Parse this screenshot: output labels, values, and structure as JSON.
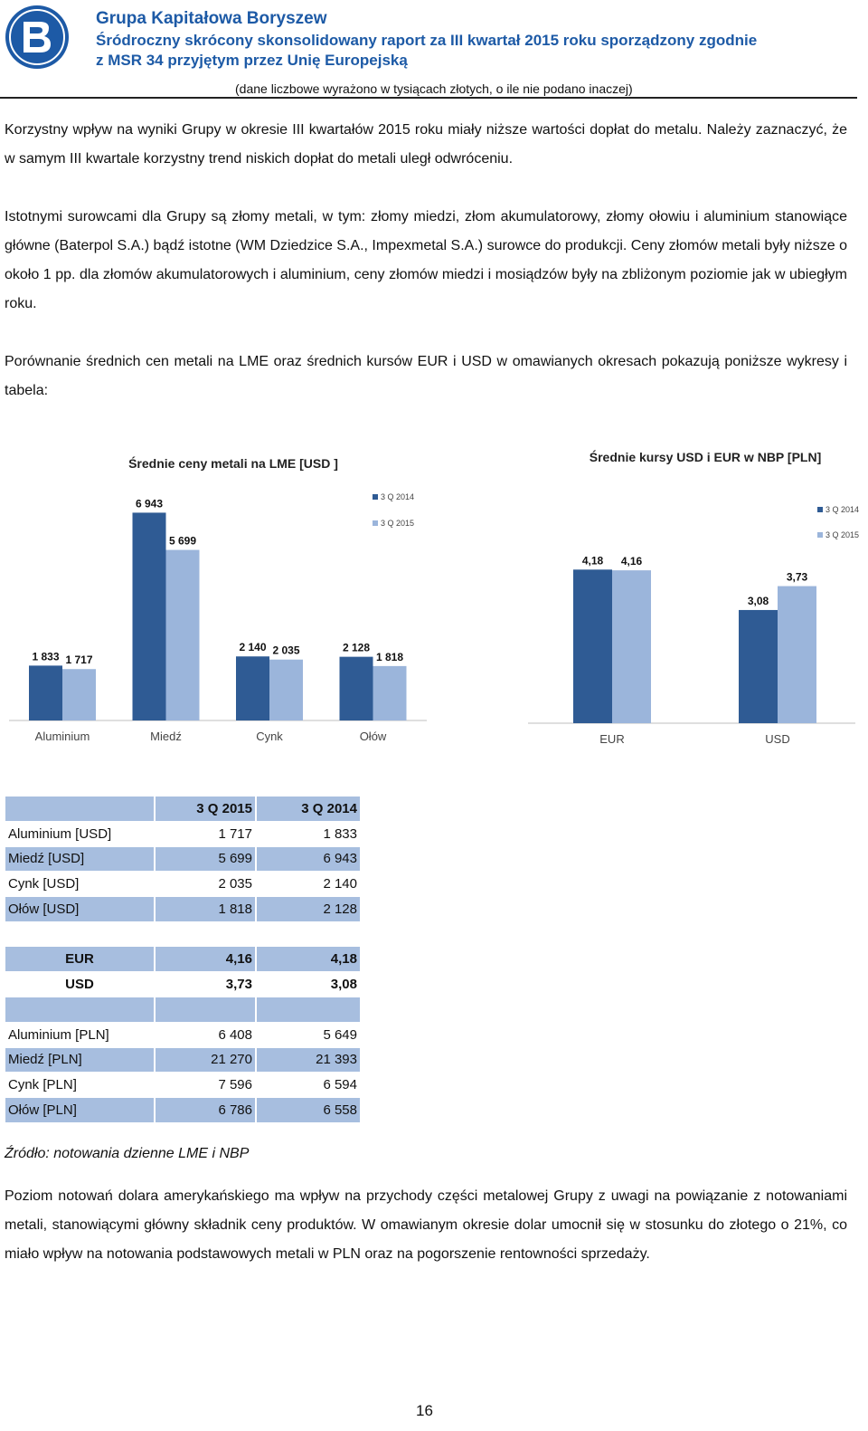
{
  "header": {
    "company": "Grupa Kapitałowa Boryszew",
    "report_line1": "Śródroczny skrócony skonsolidowany raport za III kwartał 2015 roku sporządzony zgodnie",
    "report_line2": "z MSR 34 przyjętym przez Unię Europejską",
    "units_note": "(dane liczbowe wyrażono w tysiącach złotych, o ile nie podano inaczej)"
  },
  "paragraphs": {
    "p1": "Korzystny wpływ na wyniki Grupy w okresie III kwartałów 2015 roku miały niższe wartości dopłat do metalu. Należy zaznaczyć, że w samym III kwartale korzystny trend niskich dopłat do metali uległ odwróceniu.",
    "p2": "Istotnymi surowcami dla Grupy są złomy metali, w tym: złomy miedzi, złom akumulatorowy, złomy ołowiu i aluminium stanowiące główne (Baterpol S.A.) bądź istotne (WM Dziedzice S.A., Impexmetal S.A.) surowce do produkcji. Ceny złomów metali były niższe o około 1 pp. dla złomów akumulatorowych i aluminium, ceny złomów miedzi i mosiądzów były na zbliżonym poziomie jak w ubiegłym roku.",
    "p3": "Porównanie średnich cen metali na LME oraz średnich kursów EUR i USD w omawianych okresach pokazują poniższe wykresy i tabela:",
    "source": "Źródło: notowania dzienne LME i NBP",
    "p4": "Poziom notowań dolara amerykańskiego ma wpływ na przychody części metalowej Grupy z uwagi na powiązanie z notowaniami metali, stanowiącymi główny składnik ceny produktów. W omawianym okresie dolar umocnił się w stosunku do złotego o 21%, co miało wpływ na notowania podstawowych metali w PLN oraz na pogorszenie rentowności sprzedaży."
  },
  "colors": {
    "brand": "#1d5aa6",
    "series_2014": "#2f5b94",
    "series_2015": "#9bb5db",
    "table_shade": "#a7bedf"
  },
  "chart_data": [
    {
      "type": "bar",
      "title": "Średnie ceny metali na LME [USD ]",
      "categories": [
        "Aluminium",
        "Miedź",
        "Cynk",
        "Ołów"
      ],
      "series": [
        {
          "name": "3 Q 2014",
          "values": [
            1833,
            6943,
            2140,
            2128
          ],
          "labels": [
            "1 833",
            "6 943",
            "2 140",
            "2 128"
          ]
        },
        {
          "name": "3 Q 2015",
          "values": [
            1717,
            5699,
            2035,
            1818
          ],
          "labels": [
            "1 717",
            "5 699",
            "2 035",
            "1 818"
          ]
        }
      ],
      "ylim": [
        0,
        7500
      ],
      "legend": "top-right",
      "grid": false
    },
    {
      "type": "bar",
      "title": "Średnie kursy USD i EUR w NBP [PLN]",
      "categories": [
        "EUR",
        "USD"
      ],
      "series": [
        {
          "name": "3 Q 2014",
          "values": [
            4.18,
            3.08
          ],
          "labels": [
            "4,18",
            "3,08"
          ]
        },
        {
          "name": "3 Q 2015",
          "values": [
            4.16,
            3.73
          ],
          "labels": [
            "4,16",
            "3,73"
          ]
        }
      ],
      "ylim": [
        0,
        5
      ],
      "legend": "top-right",
      "grid": false
    }
  ],
  "tables": {
    "metal_usd": {
      "headers": [
        "",
        "3 Q 2015",
        "3 Q 2014"
      ],
      "rows": [
        [
          "Aluminium [USD]",
          "1 717",
          "1 833"
        ],
        [
          "Miedź [USD]",
          "5 699",
          "6 943"
        ],
        [
          "Cynk [USD]",
          "2 035",
          "2 140"
        ],
        [
          "Ołów  [USD]",
          "1 818",
          "2 128"
        ]
      ]
    },
    "fx": {
      "rows": [
        [
          "EUR",
          "4,16",
          "4,18"
        ],
        [
          "USD",
          "3,73",
          "3,08"
        ]
      ]
    },
    "metal_pln": {
      "rows": [
        [
          "Aluminium [PLN]",
          "6 408",
          "5 649"
        ],
        [
          "Miedź [PLN]",
          "21 270",
          "21 393"
        ],
        [
          "Cynk [PLN]",
          "7 596",
          "6 594"
        ],
        [
          "Ołów  [PLN]",
          "6 786",
          "6 558"
        ]
      ]
    }
  },
  "footer": {
    "page_number": "16"
  }
}
